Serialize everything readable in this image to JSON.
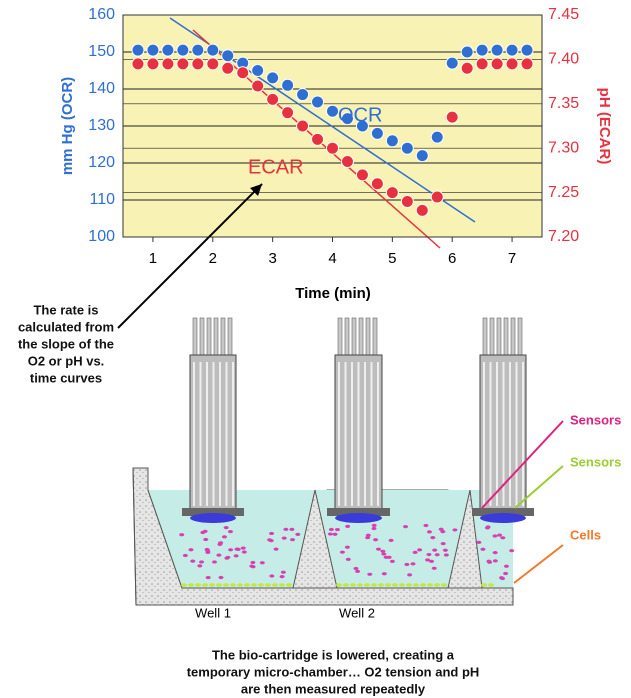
{
  "chart_data": {
    "type": "scatter",
    "x_label": "Time (min)",
    "y_label": "mm Hg (OCR)",
    "y2_label": "pH (ECAR)",
    "annotations": [
      "OCR",
      "ECAR"
    ],
    "x": [
      0.75,
      1,
      1.25,
      1.5,
      1.75,
      2,
      2.25,
      2.5,
      2.75,
      3,
      3.25,
      3.5,
      3.75,
      4,
      4.25,
      4.5,
      4.75,
      5,
      5.25,
      5.5,
      5.75,
      6,
      6.25,
      6.5,
      6.75,
      7,
      7.25
    ],
    "series": [
      {
        "name": "OCR",
        "color": "#2e6fd1",
        "values": [
          150.5,
          150.5,
          150.5,
          150.5,
          150.5,
          150.5,
          149,
          147,
          145,
          143,
          141,
          138.5,
          136.5,
          134,
          132,
          130,
          128,
          126,
          124,
          122,
          127,
          147,
          150,
          150.5,
          150.5,
          150.5,
          150.5
        ]
      },
      {
        "name": "ECAR",
        "color": "#e8313f",
        "axis": "y2",
        "values": [
          7.395,
          7.395,
          7.395,
          7.395,
          7.395,
          7.395,
          7.39,
          7.385,
          7.37,
          7.355,
          7.34,
          7.325,
          7.31,
          7.3,
          7.285,
          7.27,
          7.26,
          7.25,
          7.24,
          7.23,
          7.245,
          7.335,
          7.39,
          7.395,
          7.395,
          7.395,
          7.395
        ]
      }
    ],
    "xlim": [
      0.5,
      7.5
    ],
    "xticks": [
      1,
      2,
      3,
      4,
      5,
      6,
      7
    ],
    "ylim": [
      100,
      160
    ],
    "yticks": [
      100,
      110,
      120,
      130,
      140,
      150,
      160
    ],
    "y2lim": [
      7.2,
      7.45
    ],
    "y2ticks": [
      {
        "value": 7.2,
        "label": "7.20"
      },
      {
        "value": 7.25,
        "label": "7.25"
      },
      {
        "value": 7.3,
        "label": "7.30"
      },
      {
        "value": 7.35,
        "label": "7.35"
      },
      {
        "value": 7.4,
        "label": "7.40"
      },
      {
        "value": 7.45,
        "label": "7.45"
      }
    ],
    "grid": true
  },
  "diagram": {
    "rate_note": [
      "The rate is",
      "calculated from",
      "the slope of the",
      "O2 or pH vs.",
      "time curves"
    ],
    "labels": [
      "Sensors",
      "Sensors",
      "Cells"
    ],
    "wells": [
      "Well 1",
      "Well 2"
    ],
    "caption": [
      "The bio-cartridge is lowered, creating a",
      "temporary micro-chamber… O2 tension and pH",
      "are then measured repeatedly"
    ]
  }
}
